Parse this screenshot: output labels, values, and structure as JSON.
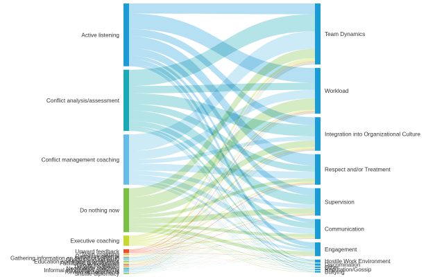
{
  "chart_data": {
    "type": "sankey",
    "title": "",
    "left_nodes": [
      {
        "name": "Active listening",
        "value": 80,
        "color": "#1a9cd6"
      },
      {
        "name": "Conflict analysis/assessment",
        "value": 78,
        "color": "#19aab8"
      },
      {
        "name": "Conflict management coaching",
        "value": 64,
        "color": "#63bde6"
      },
      {
        "name": "Do nothing now",
        "value": 56,
        "color": "#7ac143"
      },
      {
        "name": "Executive coaching",
        "value": 13,
        "color": "#c6d92e"
      },
      {
        "name": "Upward feedback",
        "value": 5,
        "color": "#e8502b"
      },
      {
        "name": "Team coaching",
        "value": 1,
        "color": "#f3a63b"
      },
      {
        "name": "Resource referral",
        "value": 1,
        "color": "#f8d13a"
      },
      {
        "name": "Gathering information on behalf of visitor(s)",
        "value": 1,
        "color": "#1a9cd6"
      },
      {
        "name": "Contact second party",
        "value": 1,
        "color": "#63bde6"
      },
      {
        "name": "Education and training workshops",
        "value": 1,
        "color": "#7ac143"
      },
      {
        "name": "Facilitated conversation",
        "value": 1,
        "color": "#c6d92e"
      },
      {
        "name": "Group facilitation",
        "value": 1,
        "color": "#e8502b"
      },
      {
        "name": "Targeted outreach",
        "value": 1,
        "color": "#f3a63b"
      },
      {
        "name": "Negotiation coaching",
        "value": 1,
        "color": "#19aab8"
      },
      {
        "name": "Informal information gathering",
        "value": 1,
        "color": "#1a9cd6"
      },
      {
        "name": "Review of documents",
        "value": 1,
        "color": "#63bde6"
      },
      {
        "name": "Shuttle diplomacy",
        "value": 1,
        "color": "#7ac143"
      }
    ],
    "right_nodes": [
      {
        "name": "Team Dynamics",
        "value": 80
      },
      {
        "name": "Workload",
        "value": 60
      },
      {
        "name": "Integration into Organizational Culture",
        "value": 44
      },
      {
        "name": "Respect and/or Treatment",
        "value": 40
      },
      {
        "name": "Supervision",
        "value": 36
      },
      {
        "name": "Communication",
        "value": 26
      },
      {
        "name": "Engagement",
        "value": 18
      },
      {
        "name": "Hostile Work Environment",
        "value": 4
      },
      {
        "name": "Discrimination",
        "value": 3
      },
      {
        "name": "Other",
        "value": 2
      },
      {
        "name": "Reputation/Gossip",
        "value": 2
      },
      {
        "name": "Bullying",
        "value": 2
      }
    ],
    "right_color": "#1a9cd6"
  }
}
